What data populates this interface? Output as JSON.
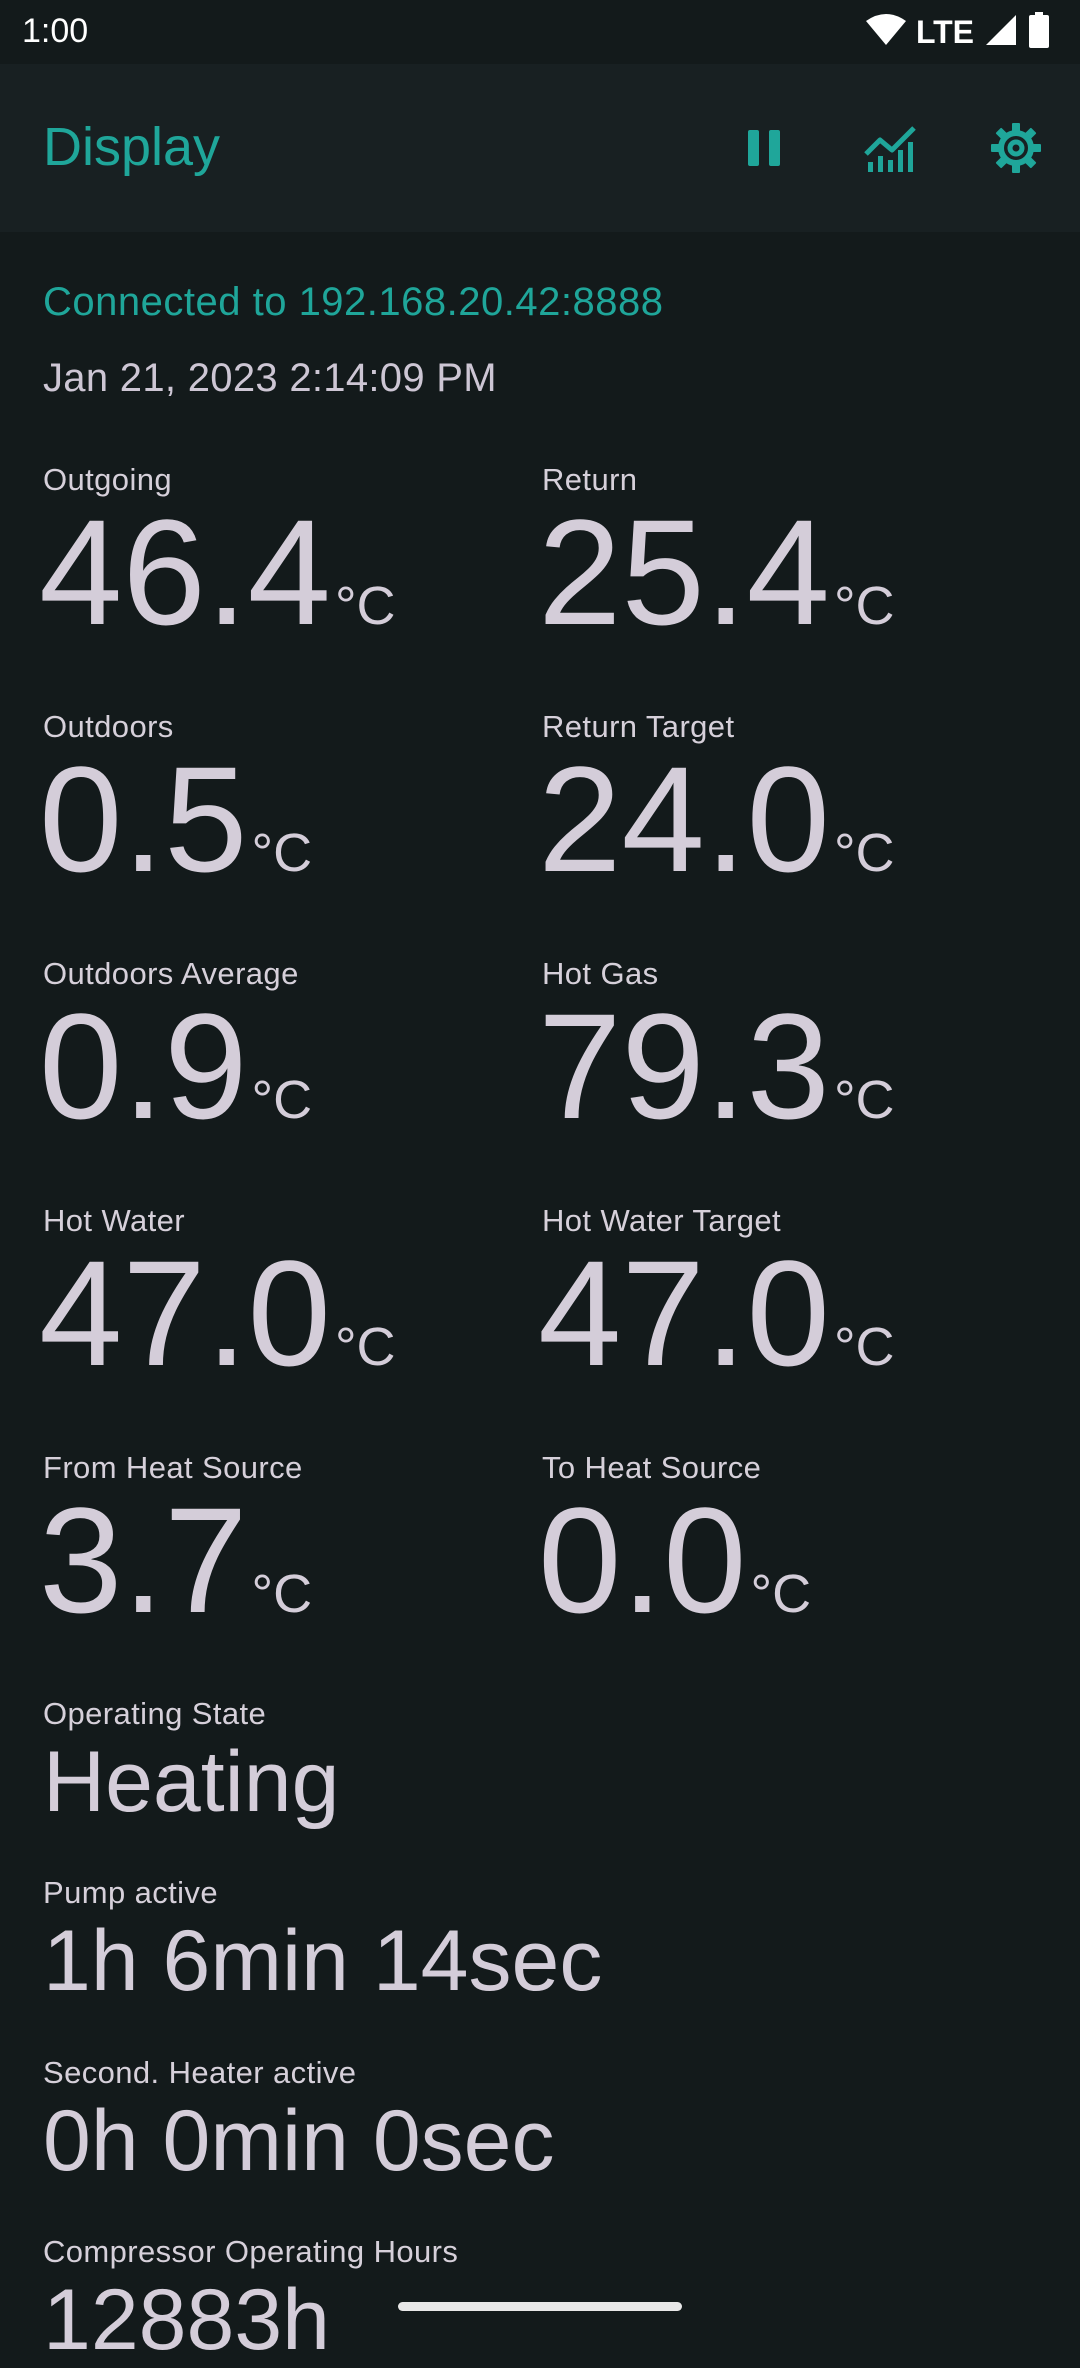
{
  "status_bar": {
    "time": "1:00",
    "network": "LTE",
    "icons": [
      "wifi-icon",
      "signal-icon",
      "battery-icon"
    ]
  },
  "app_bar": {
    "title": "Display",
    "actions": [
      "pause-icon",
      "chart-icon",
      "gear-icon"
    ]
  },
  "connection": {
    "text": "Connected to 192.168.20.42:8888"
  },
  "timestamp": "Jan 21, 2023 2:14:09 PM",
  "metrics": [
    {
      "label": "Outgoing",
      "value": "46.4",
      "unit": "°C"
    },
    {
      "label": "Return",
      "value": "25.4",
      "unit": "°C"
    },
    {
      "label": "Outdoors",
      "value": "0.5",
      "unit": "°C"
    },
    {
      "label": "Return Target",
      "value": "24.0",
      "unit": "°C"
    },
    {
      "label": "Outdoors Average",
      "value": "0.9",
      "unit": "°C"
    },
    {
      "label": "Hot Gas",
      "value": "79.3",
      "unit": "°C"
    },
    {
      "label": "Hot Water",
      "value": "47.0",
      "unit": "°C"
    },
    {
      "label": "Hot Water Target",
      "value": "47.0",
      "unit": "°C"
    },
    {
      "label": "From Heat Source",
      "value": "3.7",
      "unit": "°C"
    },
    {
      "label": "To Heat Source",
      "value": "0.0",
      "unit": "°C"
    }
  ],
  "operating_state": {
    "label": "Operating State",
    "value": "Heating"
  },
  "pump_active": {
    "label": "Pump active",
    "value": "1h 6min 14sec"
  },
  "second_heater": {
    "label": "Second. Heater active",
    "value": "0h 0min 0sec"
  },
  "compressor_hours": {
    "label": "Compressor Operating Hours",
    "value": "12883h"
  },
  "colors": {
    "background": "#131a1b",
    "app_bar": "#182022",
    "accent": "#1fa69a",
    "text": "#d4cdd9"
  }
}
